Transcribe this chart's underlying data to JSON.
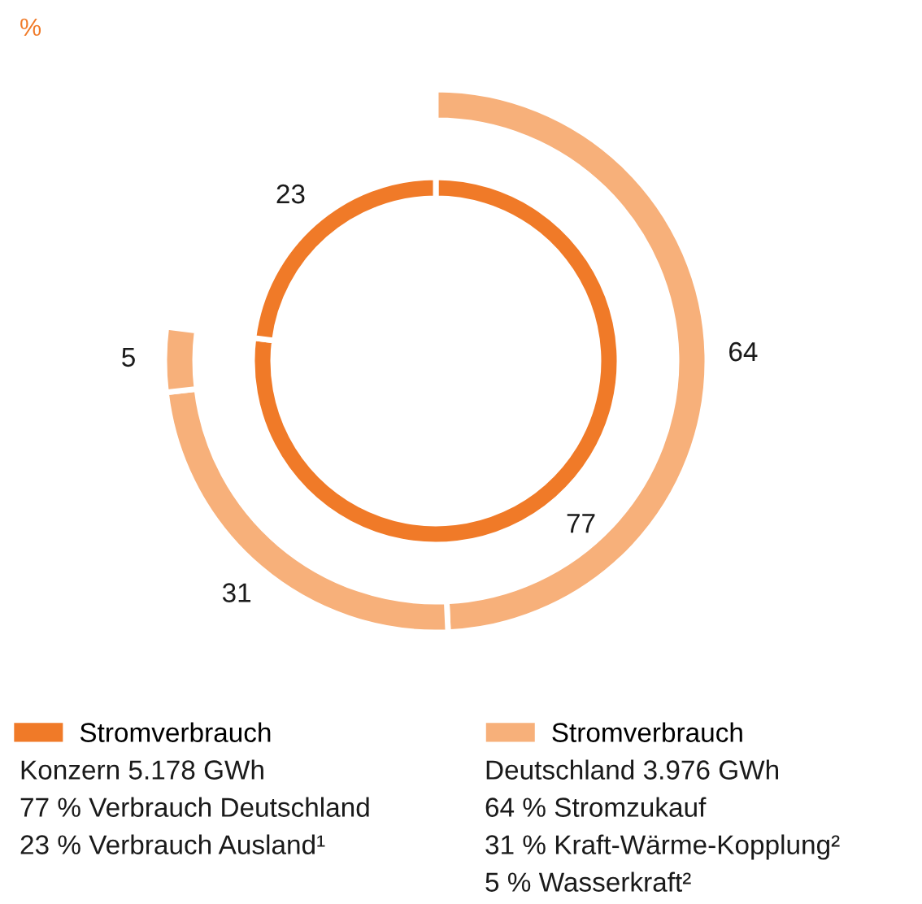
{
  "chart_data": {
    "type": "donut",
    "ylabel": "%",
    "categories": [
      null,
      null,
      null
    ],
    "data_labels": true,
    "legend": "bottom",
    "series": [
      {
        "name": "Stromverbrauch",
        "color": "#f07a28",
        "values": [
          77,
          23,
          null
        ]
      },
      {
        "name": "Stromverbrauch",
        "color": "#f7b07a",
        "values": [
          64,
          31,
          5
        ]
      }
    ],
    "annotations": [
      "Konzern 5.178 GWh",
      "77 % Verbrauch Deutschland",
      "23 % Verbrauch Ausland¹",
      "Deutschland 3.976 GWh",
      "64 % Stromzukauf",
      "31 % Kraft-Wärme-Kopplung²",
      "5 % Wasserkraft²"
    ]
  }
}
